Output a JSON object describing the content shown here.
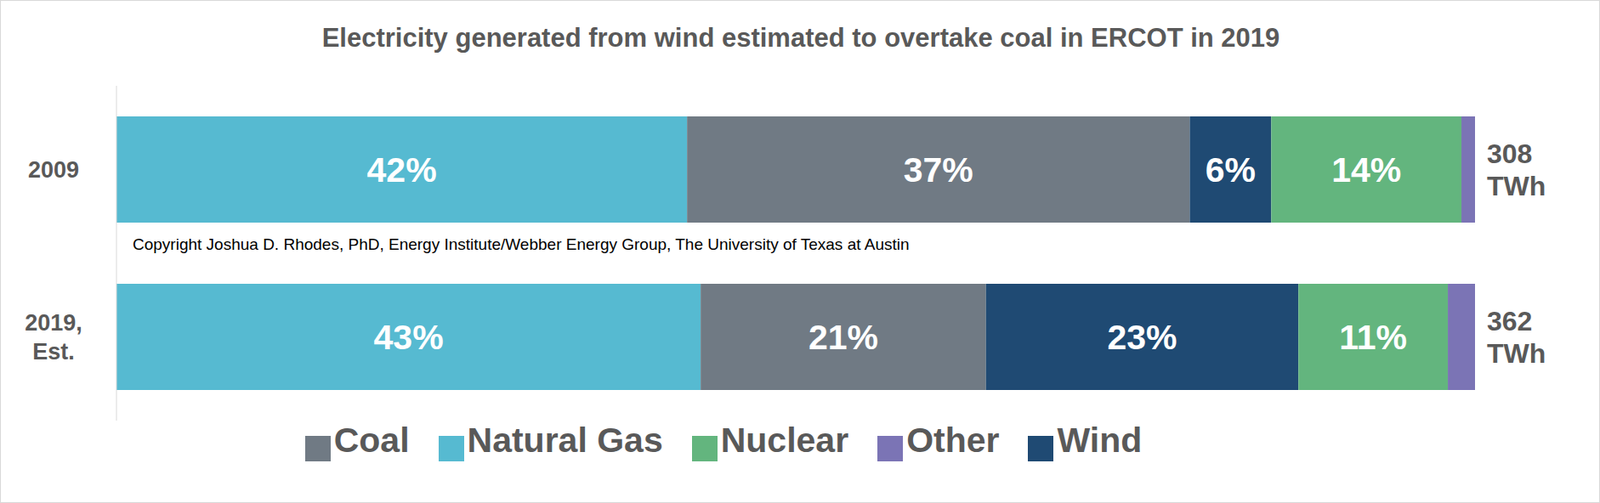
{
  "chart_data": {
    "type": "bar",
    "title": "Electricity generated from wind estimated to overtake coal in ERCOT in 2019",
    "orientation": "horizontal",
    "stacked": true,
    "data_labels": true,
    "tick_labels": "y",
    "legend": "bottom",
    "categories": [
      "2009",
      "2019, Est."
    ],
    "xlim": [
      0,
      100
    ],
    "series": [
      {
        "name": "Natural Gas",
        "color": "#56bad1",
        "values": [
          42,
          43
        ],
        "value_labels": [
          "42%",
          "43%"
        ]
      },
      {
        "name": "Coal",
        "color": "#707a84",
        "values": [
          37,
          21
        ],
        "value_labels": [
          "37%",
          "21%"
        ]
      },
      {
        "name": "Wind",
        "color": "#1f4a73",
        "values": [
          6,
          23
        ],
        "value_labels": [
          "6%",
          "23%"
        ]
      },
      {
        "name": "Nuclear",
        "color": "#63b57e",
        "values": [
          14,
          11
        ],
        "value_labels": [
          "14%",
          "11%"
        ]
      },
      {
        "name": "Other",
        "color": "#7b74b5",
        "values": [
          1,
          2
        ]
      }
    ],
    "totals": [
      308,
      362
    ],
    "total_labels": [
      "308 TWh",
      "362 TWh"
    ],
    "annotations": [
      "Copyright Joshua D. Rhodes, PhD, Energy Institute/Webber Energy Group, The University of Texas at Austin"
    ]
  }
}
